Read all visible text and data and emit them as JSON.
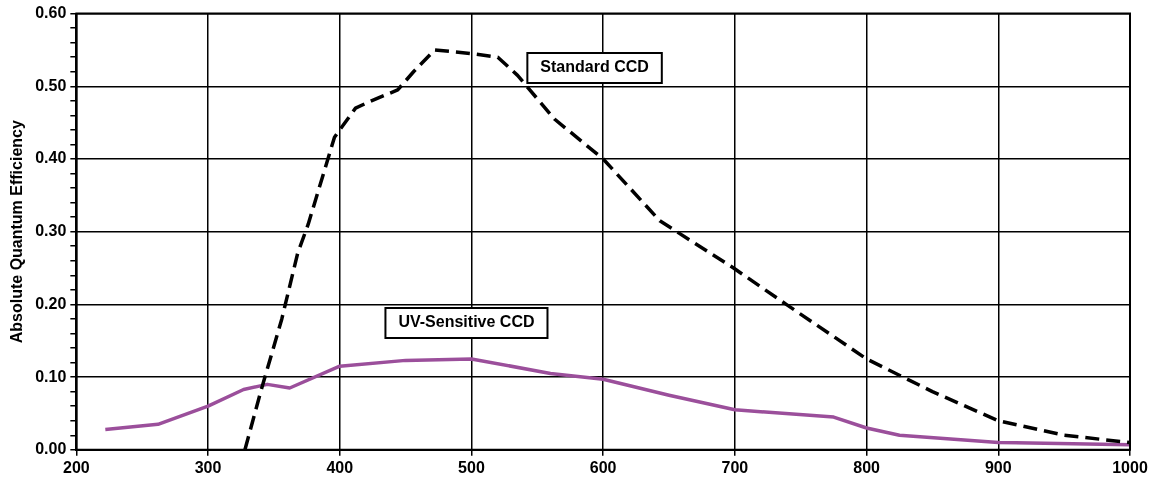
{
  "chart_data": {
    "type": "line",
    "ylabel": "Absolute Quantum Efficiency",
    "xlim": [
      200,
      1000
    ],
    "xticks": [
      200,
      300,
      400,
      500,
      600,
      700,
      800,
      900,
      1000
    ],
    "ylim": [
      0,
      0.6
    ],
    "yticks": [
      {
        "value": 0,
        "label": "0.00"
      },
      {
        "value": 0.02,
        "label": null
      },
      {
        "value": 0.04,
        "label": null
      },
      {
        "value": 0.06,
        "label": null
      },
      {
        "value": 0.08,
        "label": null
      },
      {
        "value": 0.1,
        "label": "0.10"
      },
      {
        "value": 0.12,
        "label": null
      },
      {
        "value": 0.14,
        "label": null
      },
      {
        "value": 0.16,
        "label": null
      },
      {
        "value": 0.18,
        "label": null
      },
      {
        "value": 0.2,
        "label": "0.20"
      },
      {
        "value": 0.22,
        "label": null
      },
      {
        "value": 0.24,
        "label": null
      },
      {
        "value": 0.26,
        "label": null
      },
      {
        "value": 0.28,
        "label": null
      },
      {
        "value": 0.3,
        "label": "0.30"
      },
      {
        "value": 0.32,
        "label": null
      },
      {
        "value": 0.34,
        "label": null
      },
      {
        "value": 0.36,
        "label": null
      },
      {
        "value": 0.38,
        "label": null
      },
      {
        "value": 0.4,
        "label": "0.40"
      },
      {
        "value": 0.42,
        "label": null
      },
      {
        "value": 0.44,
        "label": null
      },
      {
        "value": 0.46,
        "label": null
      },
      {
        "value": 0.48,
        "label": null
      },
      {
        "value": 0.5,
        "label": "0.50"
      },
      {
        "value": 0.52,
        "label": null
      },
      {
        "value": 0.54,
        "label": null
      },
      {
        "value": 0.56,
        "label": null
      },
      {
        "value": 0.58,
        "label": null
      },
      {
        "value": 0.6,
        "label": "0.60"
      }
    ],
    "grid": true,
    "legend": false,
    "marker": "none",
    "series": [
      {
        "name": "Standard CCD",
        "color": "#000000",
        "line_style": "dashed",
        "x": [
          328,
          340,
          356,
          368,
          376,
          396,
          412,
          424,
          444,
          456,
          472,
          500,
          520,
          535,
          563,
          600,
          643,
          699,
          739,
          800,
          850,
          900,
          950,
          1000
        ],
        "values": [
          0,
          0.08,
          0.18,
          0.27,
          0.31,
          0.43,
          0.47,
          0.48,
          0.495,
          0.52,
          0.55,
          0.545,
          0.54,
          0.515,
          0.455,
          0.4,
          0.315,
          0.25,
          0.2,
          0.125,
          0.08,
          0.04,
          0.02,
          0.01
        ]
      },
      {
        "name": "UV-Sensitive CCD",
        "color": "#9b4f9b",
        "line_style": "solid",
        "x": [
          222,
          262,
          300,
          327,
          345,
          362,
          400,
          450,
          500,
          560,
          600,
          650,
          700,
          775,
          800,
          825,
          900,
          1000
        ],
        "values": [
          0.028,
          0.035,
          0.06,
          0.083,
          0.09,
          0.085,
          0.115,
          0.123,
          0.125,
          0.105,
          0.097,
          0.075,
          0.055,
          0.045,
          0.03,
          0.02,
          0.01,
          0.007
        ]
      }
    ]
  }
}
